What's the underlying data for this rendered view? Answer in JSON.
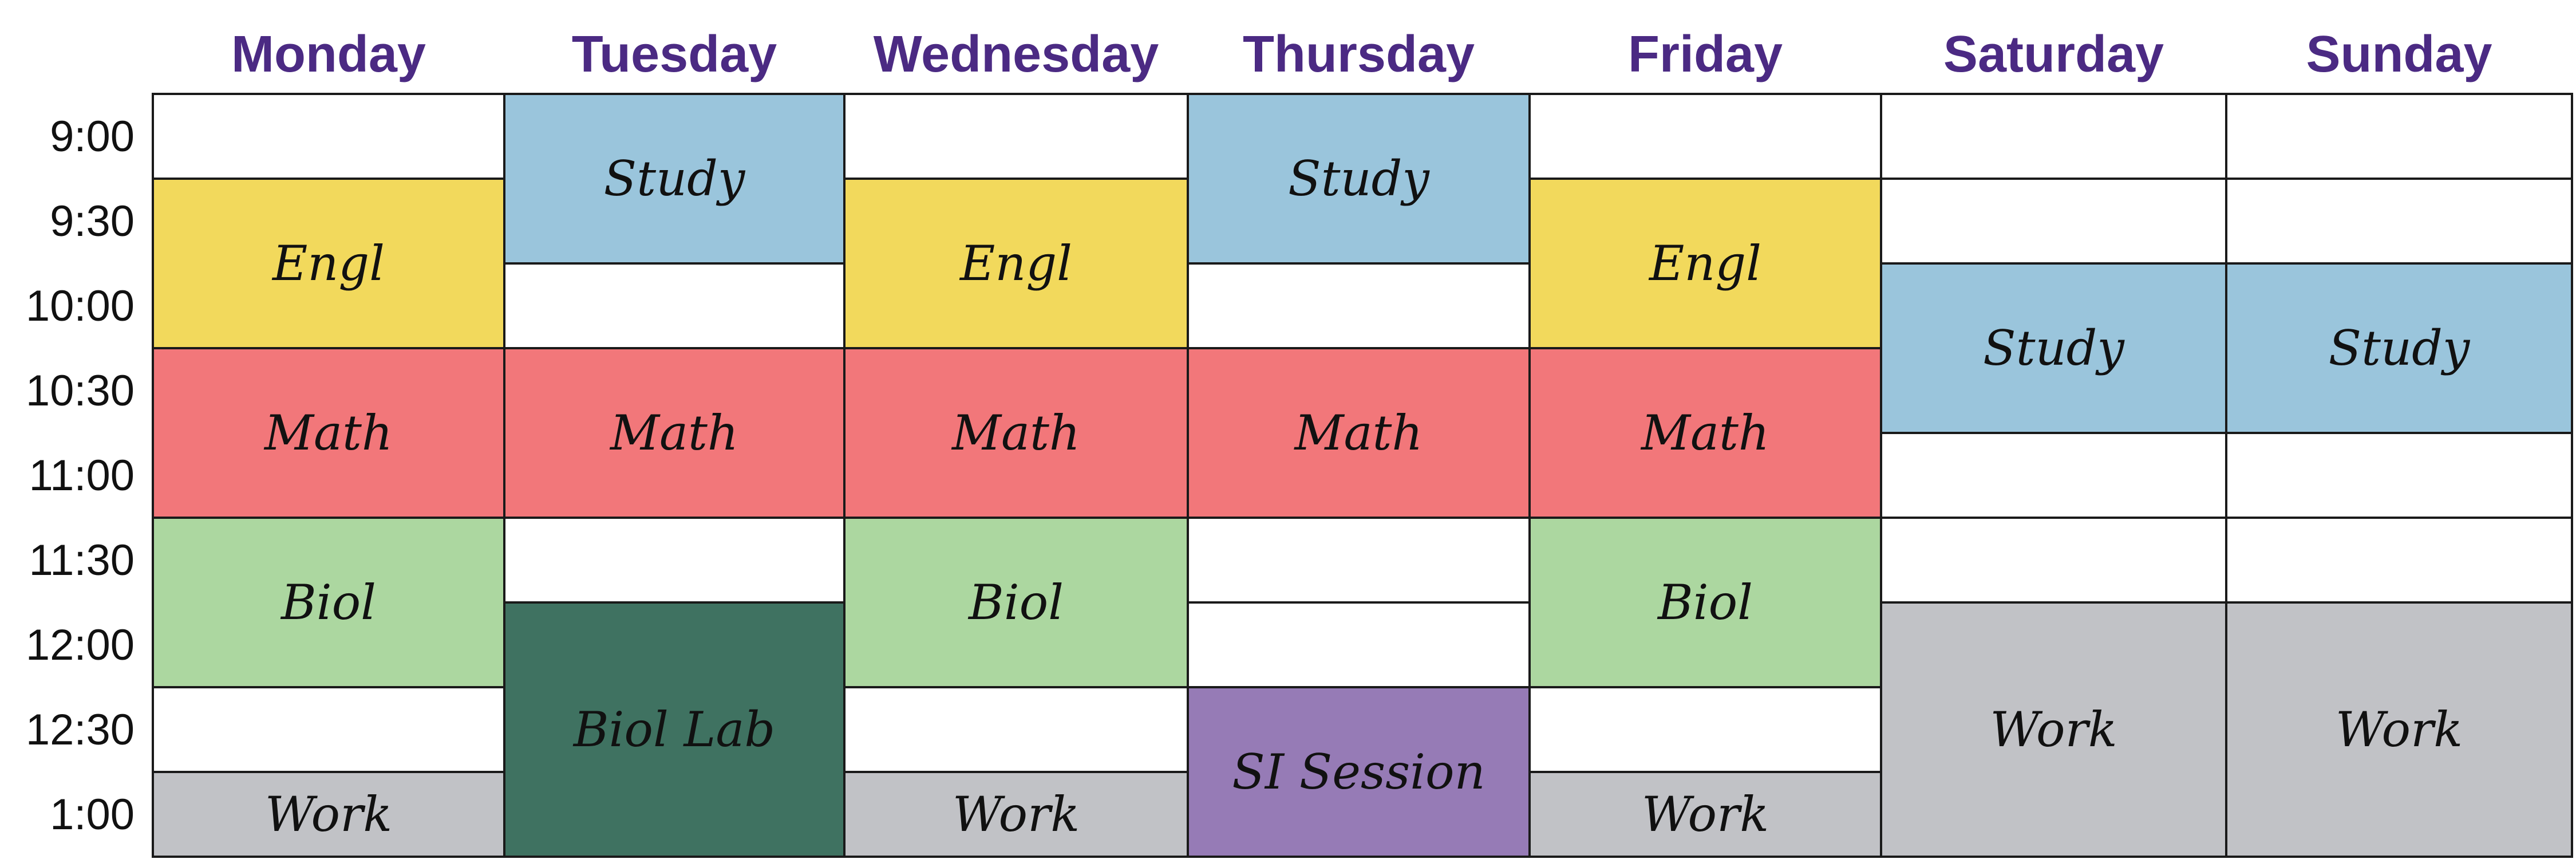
{
  "times": [
    "9:00",
    "9:30",
    "10:00",
    "10:30",
    "11:00",
    "11:30",
    "12:00",
    "12:30",
    "1:00"
  ],
  "colors": {
    "Study": "#9ac5dc",
    "Engl": "#f2d95c",
    "Math": "#f2777a",
    "Biol": "#acd7a0",
    "Biol Lab": "#3f7261",
    "SI Session": "#967bb6",
    "Work": "#c1c2c6"
  },
  "days": [
    {
      "name": "Monday",
      "slots": [
        null,
        "Engl",
        "Engl",
        "Math",
        "Math",
        "Biol",
        "Biol",
        null,
        "Work"
      ]
    },
    {
      "name": "Tuesday",
      "slots": [
        "Study",
        "Study",
        null,
        "Math",
        "Math",
        null,
        "Biol Lab",
        "Biol Lab",
        "Biol Lab"
      ]
    },
    {
      "name": "Wednesday",
      "slots": [
        null,
        "Engl",
        "Engl",
        "Math",
        "Math",
        "Biol",
        "Biol",
        null,
        "Work"
      ]
    },
    {
      "name": "Thursday",
      "slots": [
        "Study",
        "Study",
        null,
        "Math",
        "Math",
        null,
        null,
        "SI Session",
        "SI Session"
      ]
    },
    {
      "name": "Friday",
      "slots": [
        null,
        "Engl",
        "Engl",
        "Math",
        "Math",
        "Biol",
        "Biol",
        null,
        "Work"
      ]
    },
    {
      "name": "Saturday",
      "slots": [
        null,
        null,
        "Study",
        "Study",
        null,
        null,
        "Work",
        "Work",
        "Work"
      ]
    },
    {
      "name": "Sunday",
      "slots": [
        null,
        null,
        "Study",
        "Study",
        null,
        null,
        "Work",
        "Work",
        "Work"
      ]
    }
  ]
}
